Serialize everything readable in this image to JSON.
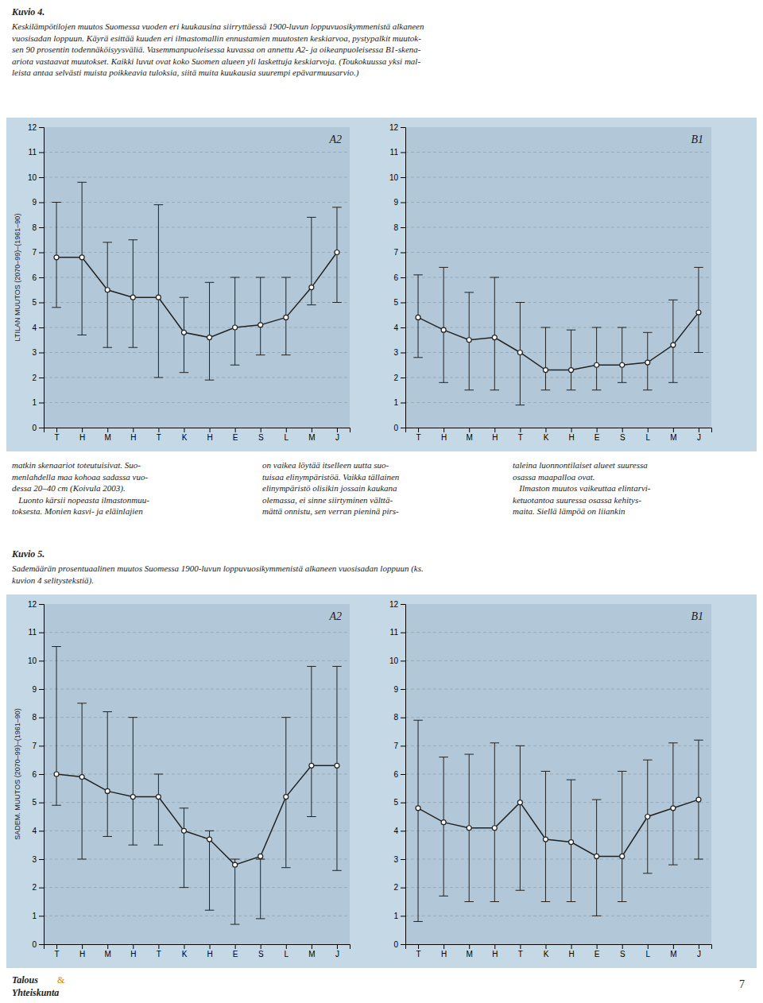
{
  "chart_data": [
    {
      "type": "line",
      "ylabel": "LTILAN MUUTOS (2070–99)–(1961–90)",
      "annotation": "A2",
      "categories": [
        "T",
        "H",
        "M",
        "H",
        "T",
        "K",
        "H",
        "E",
        "S",
        "L",
        "M",
        "J"
      ],
      "series": [
        {
          "color": "#222222",
          "marker": "circle",
          "values": [
            6.8,
            6.8,
            5.5,
            5.2,
            5.2,
            3.8,
            3.6,
            4.0,
            4.1,
            4.4,
            5.6,
            7.0
          ],
          "lower": [
            4.8,
            3.7,
            3.2,
            3.2,
            2.0,
            2.2,
            1.9,
            2.5,
            2.9,
            2.9,
            4.9,
            5.0
          ],
          "upper": [
            9.0,
            9.8,
            7.4,
            7.5,
            8.9,
            5.2,
            5.8,
            6.0,
            6.0,
            6.0,
            8.4,
            8.8
          ]
        }
      ],
      "ylim": [
        0,
        12
      ],
      "yticks": [
        0,
        1,
        2,
        3,
        4,
        5,
        6,
        7,
        8,
        9,
        10,
        11,
        12
      ],
      "grid": true
    },
    {
      "type": "line",
      "annotation": "B1",
      "categories": [
        "T",
        "H",
        "M",
        "H",
        "T",
        "K",
        "H",
        "E",
        "S",
        "L",
        "M",
        "J"
      ],
      "series": [
        {
          "color": "#222222",
          "marker": "circle",
          "values": [
            4.4,
            3.9,
            3.5,
            3.6,
            3.0,
            2.3,
            2.3,
            2.5,
            2.5,
            2.6,
            3.3,
            4.6
          ],
          "lower": [
            2.8,
            1.8,
            1.5,
            1.5,
            0.9,
            1.5,
            1.5,
            1.5,
            1.8,
            1.5,
            1.8,
            3.0
          ],
          "upper": [
            6.1,
            6.4,
            5.4,
            6.0,
            5.0,
            4.0,
            3.9,
            4.0,
            4.0,
            3.8,
            5.1,
            6.4
          ]
        }
      ],
      "ylim": [
        0,
        12
      ],
      "yticks": [
        0,
        1,
        2,
        3,
        4,
        5,
        6,
        7,
        8,
        9,
        10,
        11,
        12
      ],
      "grid": true
    },
    {
      "type": "line",
      "ylabel": "SADEM. MUUTOS (2070–99)–(1961–90)",
      "annotation": "A2",
      "categories": [
        "T",
        "H",
        "M",
        "H",
        "T",
        "K",
        "H",
        "E",
        "S",
        "L",
        "M",
        "J"
      ],
      "series": [
        {
          "color": "#222222",
          "marker": "circle",
          "values": [
            6.0,
            5.9,
            5.4,
            5.2,
            5.2,
            4.0,
            3.7,
            2.8,
            3.1,
            5.2,
            6.3,
            6.3
          ],
          "lower": [
            4.9,
            3.0,
            3.8,
            3.5,
            3.5,
            2.0,
            1.2,
            0.7,
            0.9,
            2.7,
            4.5,
            2.6
          ],
          "upper": [
            10.5,
            8.5,
            8.2,
            8.0,
            6.0,
            4.8,
            4.0,
            3.0,
            3.0,
            8.0,
            9.8,
            9.8
          ]
        }
      ],
      "ylim": [
        0,
        12
      ],
      "yticks": [
        0,
        1,
        2,
        3,
        4,
        5,
        6,
        7,
        8,
        9,
        10,
        11,
        12
      ],
      "grid": true
    },
    {
      "type": "line",
      "annotation": "B1",
      "categories": [
        "T",
        "H",
        "M",
        "H",
        "T",
        "K",
        "H",
        "E",
        "S",
        "L",
        "M",
        "J"
      ],
      "series": [
        {
          "color": "#222222",
          "marker": "circle",
          "values": [
            4.8,
            4.3,
            4.1,
            4.1,
            5.0,
            3.7,
            3.6,
            3.1,
            3.1,
            4.5,
            4.8,
            5.1
          ],
          "lower": [
            0.8,
            1.7,
            1.5,
            1.5,
            1.9,
            1.5,
            1.5,
            1.0,
            1.5,
            2.5,
            2.8,
            3.0
          ],
          "upper": [
            7.9,
            6.6,
            6.7,
            7.1,
            7.0,
            6.1,
            5.8,
            5.1,
            6.1,
            6.5,
            7.1,
            7.2
          ]
        }
      ],
      "ylim": [
        0,
        12
      ],
      "yticks": [
        0,
        1,
        2,
        3,
        4,
        5,
        6,
        7,
        8,
        9,
        10,
        11,
        12
      ],
      "grid": true
    }
  ],
  "page": {
    "fig4_title": "Kuvio 4.",
    "fig4_caption": "Keskilämpötilojen muutos Suomessa vuoden eri kuukausina siirryttäessä 1900-luvun loppuvuosikymmenistä alkaneen\nvuosisadan loppuun. Käyrä esittää kuuden eri ilmastomallin ennustamien muutosten keskiarvoa, pystypalkit muutok-\nsen 90 prosentin todennäköisyysväliä. Vasemmanpuoleisessa kuvassa on annettu A2- ja oikeanpuoleisessa B1-skena-\nariota vastaavat muutokset. Kaikki luvut ovat koko Suomen alueen yli laskettuja keskiarvoja. (Toukokuussa yksi mal-\nleista antaa selvästi muista poikkeavia tuloksia, siitä muita kuukausia suurempi epävarmuusarvio.)",
    "mid_col1": "matkin skenaariot toteutuisivat. Suo-\nmenlahdella maa kohoaa sadassa vuo-\ndessa 20–40 cm (Koivula 2003).\n   Luonto kärsii nopeasta ilmastonmuu-\ntoksesta. Monien kasvi- ja eläinlajien",
    "mid_col2": "on vaikea löytää itselleen uutta suo-\ntuisaa elinympäristöä. Vaikka tällainen\nelinympäristö olisikin jossain kaukana\nolemassa, ei sinne siirtyminen välttä-\nmättä onnistu, sen verran pieninä pirs-",
    "mid_col3": "taleina luonnontilaiset alueet suuressa\nosassa maapalloa ovat.\n   Ilmaston muutos vaikeuttaa elintarvi-\nketuotantoa suuressa osassa kehitys-\nmaita. Siellä lämpöä on liiankin",
    "fig5_title": "Kuvio 5.",
    "fig5_caption": "Sademäärän prosentuaalinen muutos Suomessa 1900-luvun loppuvuosikymmenistä alkaneen vuosisadan loppuun (ks.\nkuvion 4 selitystekstiä).",
    "footer_1": "Talous",
    "footer_amp": "&",
    "amp_color": "#d4820a",
    "footer_2": "Yhteiskunta",
    "page_number": "7"
  }
}
